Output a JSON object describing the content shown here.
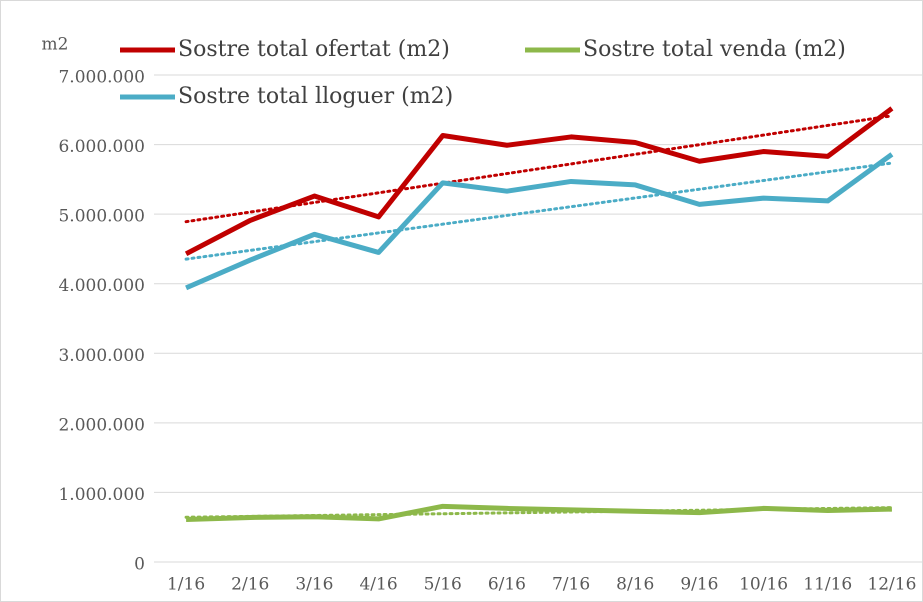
{
  "chart_data": {
    "type": "line",
    "y_label": "m2",
    "categories": [
      "1/16",
      "2/16",
      "3/16",
      "4/16",
      "5/16",
      "6/16",
      "7/16",
      "8/16",
      "9/16",
      "10/16",
      "11/16",
      "12/16"
    ],
    "series": [
      {
        "name": "Sostre total ofertat (m2)",
        "color": "#c00000",
        "values": [
          4430000,
          4910000,
          5260000,
          4960000,
          6130000,
          5990000,
          6110000,
          6030000,
          5760000,
          5900000,
          5830000,
          6520000
        ]
      },
      {
        "name": "Sostre total venda (m2)",
        "color": "#8db84a",
        "values": [
          610000,
          640000,
          650000,
          620000,
          800000,
          770000,
          750000,
          730000,
          710000,
          770000,
          740000,
          760000
        ]
      },
      {
        "name": "Sostre total lloguer (m2)",
        "color": "#4bacc6",
        "values": [
          3940000,
          4340000,
          4710000,
          4450000,
          5450000,
          5330000,
          5470000,
          5420000,
          5140000,
          5230000,
          5190000,
          5860000
        ]
      }
    ],
    "ylim": [
      0,
      7000000
    ],
    "yticks": [
      0,
      {
        "value": 1000000,
        "label": "1.000.000"
      },
      {
        "value": 2000000,
        "label": "2.000.000"
      },
      {
        "value": 3000000,
        "label": "3.000.000"
      },
      {
        "value": 4000000,
        "label": "4.000.000"
      },
      {
        "value": 5000000,
        "label": "5.000.000"
      },
      {
        "value": 6000000,
        "label": "6.000.000"
      },
      {
        "value": 7000000,
        "label": "7.000.000"
      }
    ],
    "grid": true,
    "trendline": true,
    "legend": "top"
  }
}
